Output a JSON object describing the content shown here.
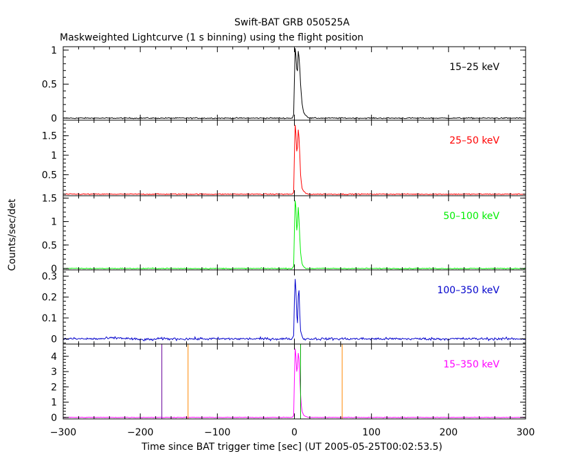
{
  "chart_data": {
    "type": "line",
    "title": "Swift-BAT GRB 050525A",
    "subtitle": "Maskweighted Lightcurve (1 s binning) using the flight position",
    "xlabel": "Time since BAT trigger time [sec] (UT 2005-05-25T00:02:53.5)",
    "ylabel": "Counts/sec/det",
    "xlim": [
      -300,
      300
    ],
    "x_ticks": [
      "−300",
      "−200",
      "−100",
      "0",
      "100",
      "200",
      "300"
    ],
    "panels": [
      {
        "name": "15–25 keV",
        "color": "#000000",
        "ylim": [
          -0.03,
          1.05
        ],
        "y_ticks": [
          {
            "v": 0,
            "label": "0"
          },
          {
            "v": 0.5,
            "label": "0.5"
          },
          {
            "v": 1,
            "label": "1"
          }
        ],
        "noise": 0.008,
        "peak": [
          [
            -3,
            0
          ],
          [
            -1,
            0.05
          ],
          [
            0,
            0.55
          ],
          [
            1,
            1.02
          ],
          [
            2,
            0.92
          ],
          [
            3,
            0.72
          ],
          [
            4,
            0.7
          ],
          [
            5,
            0.98
          ],
          [
            6,
            0.9
          ],
          [
            7,
            0.72
          ],
          [
            8,
            0.5
          ],
          [
            9,
            0.35
          ],
          [
            10,
            0.22
          ],
          [
            11,
            0.14
          ],
          [
            12,
            0.09
          ],
          [
            14,
            0.05
          ],
          [
            17,
            0.02
          ],
          [
            20,
            0
          ]
        ]
      },
      {
        "name": "25–50 keV",
        "color": "#ff0000",
        "ylim": [
          -0.04,
          1.9
        ],
        "y_ticks": [
          {
            "v": 0.5,
            "label": "0.5"
          },
          {
            "v": 1,
            "label": "1"
          },
          {
            "v": 1.5,
            "label": "1.5"
          }
        ],
        "noise": 0.012,
        "peak": [
          [
            -3,
            0
          ],
          [
            -1,
            0.05
          ],
          [
            0,
            1.0
          ],
          [
            1,
            1.78
          ],
          [
            2,
            1.55
          ],
          [
            3,
            1.1
          ],
          [
            4,
            1.2
          ],
          [
            5,
            1.65
          ],
          [
            6,
            1.45
          ],
          [
            7,
            1.0
          ],
          [
            8,
            0.5
          ],
          [
            9,
            0.3
          ],
          [
            10,
            0.15
          ],
          [
            12,
            0.07
          ],
          [
            15,
            0.02
          ],
          [
            18,
            0
          ]
        ]
      },
      {
        "name": "50–100 keV",
        "color": "#00ee00",
        "ylim": [
          -0.03,
          1.55
        ],
        "y_ticks": [
          {
            "v": 0,
            "label": "0"
          },
          {
            "v": 0.5,
            "label": "0.5"
          },
          {
            "v": 1,
            "label": "1"
          },
          {
            "v": 1.5,
            "label": "1.5"
          }
        ],
        "noise": 0.01,
        "peak": [
          [
            -3,
            0
          ],
          [
            -1,
            0.05
          ],
          [
            0,
            0.8
          ],
          [
            1,
            1.45
          ],
          [
            2,
            1.3
          ],
          [
            3,
            0.8
          ],
          [
            4,
            0.95
          ],
          [
            5,
            1.3
          ],
          [
            6,
            1.05
          ],
          [
            7,
            0.65
          ],
          [
            8,
            0.35
          ],
          [
            9,
            0.2
          ],
          [
            10,
            0.1
          ],
          [
            12,
            0.04
          ],
          [
            15,
            0
          ]
        ]
      },
      {
        "name": "100–350 keV",
        "color": "#0000cc",
        "ylim": [
          -0.025,
          0.33
        ],
        "y_ticks": [
          {
            "v": 0,
            "label": "0"
          },
          {
            "v": 0.1,
            "label": "0.1"
          },
          {
            "v": 0.2,
            "label": "0.2"
          },
          {
            "v": 0.3,
            "label": "0.3"
          }
        ],
        "noise": 0.006,
        "peak": [
          [
            -3,
            0
          ],
          [
            -1,
            0.02
          ],
          [
            0,
            0.18
          ],
          [
            1,
            0.28
          ],
          [
            2,
            0.24
          ],
          [
            3,
            0.12
          ],
          [
            4,
            0.08
          ],
          [
            5,
            0.2
          ],
          [
            6,
            0.23
          ],
          [
            7,
            0.12
          ],
          [
            8,
            0.04
          ],
          [
            10,
            0.01
          ],
          [
            12,
            0
          ]
        ]
      },
      {
        "name": "15–350 keV",
        "color": "#ff00ff",
        "ylim": [
          -0.1,
          4.8
        ],
        "y_ticks": [
          {
            "v": 0,
            "label": "0"
          },
          {
            "v": 1,
            "label": "1"
          },
          {
            "v": 2,
            "label": "2"
          },
          {
            "v": 3,
            "label": "3"
          },
          {
            "v": 4,
            "label": "4"
          }
        ],
        "noise": 0.02,
        "peak": [
          [
            -3,
            0
          ],
          [
            -1,
            0.1
          ],
          [
            0,
            2.5
          ],
          [
            1,
            4.5
          ],
          [
            2,
            4.0
          ],
          [
            3,
            3.0
          ],
          [
            4,
            3.3
          ],
          [
            5,
            4.2
          ],
          [
            6,
            3.8
          ],
          [
            7,
            2.5
          ],
          [
            8,
            1.5
          ],
          [
            9,
            0.8
          ],
          [
            10,
            0.4
          ],
          [
            12,
            0.15
          ],
          [
            15,
            0.05
          ],
          [
            18,
            0
          ]
        ],
        "vlines": [
          {
            "x": -172,
            "color": "#660099"
          },
          {
            "x": -138,
            "color": "#ff8800"
          },
          {
            "x": 8,
            "color": "#00aa00"
          },
          {
            "x": 62,
            "color": "#ff8800"
          }
        ]
      }
    ]
  }
}
